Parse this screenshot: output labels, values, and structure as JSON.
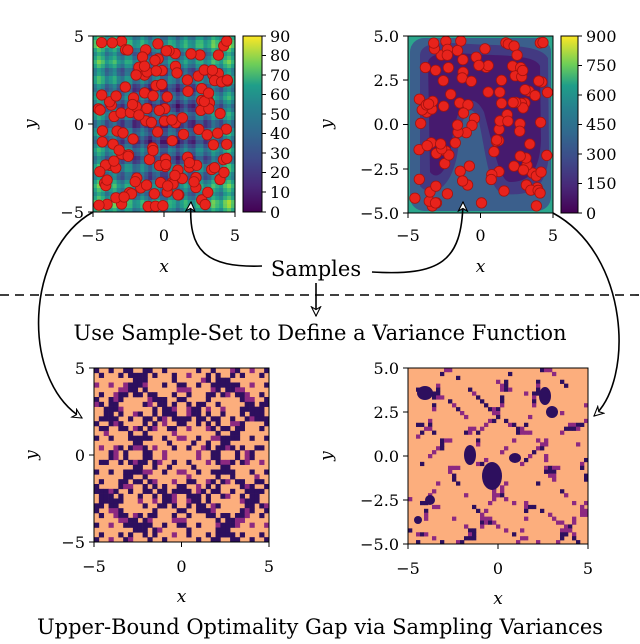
{
  "panels": [
    {
      "id": "objective-1",
      "x_ticks": [
        "−5",
        "0",
        "5"
      ],
      "y_ticks": [
        "5",
        "0",
        "−5"
      ],
      "x_label": "x",
      "y_label": "y",
      "colorbar_ticks": [
        "90",
        "80",
        "70",
        "60",
        "50",
        "40",
        "30",
        "20",
        "10",
        "0"
      ]
    },
    {
      "id": "objective-2",
      "x_ticks": [
        "−5",
        "0",
        "5"
      ],
      "y_ticks": [
        "5.0",
        "2.5",
        "0.0",
        "−2.5",
        "−5.0"
      ],
      "x_label": "x",
      "y_label": "y",
      "colorbar_ticks": [
        "900",
        "750",
        "600",
        "450",
        "300",
        "150",
        "0"
      ]
    },
    {
      "id": "variance-1",
      "x_ticks": [
        "−5",
        "0",
        "5"
      ],
      "y_ticks": [
        "5",
        "0",
        "−5"
      ],
      "x_label": "x",
      "y_label": "y"
    },
    {
      "id": "variance-2",
      "x_ticks": [
        "−5",
        "0",
        "5"
      ],
      "y_ticks": [
        "5.0",
        "2.5",
        "0.0",
        "−2.5",
        "−5.0"
      ],
      "x_label": "x",
      "y_label": "y"
    }
  ],
  "labels": {
    "samples": "Samples",
    "middle_caption": "Use Sample-Set to Define a Variance Function",
    "bottom_caption": "Upper-Bound Optimality Gap via Sampling Variances"
  },
  "colors": {
    "sample_marker": "#e8231c",
    "variance_high": "#fcae7d",
    "variance_low": "#2d0f5e",
    "viridis_low": "#440154",
    "viridis_high": "#fde725"
  }
}
